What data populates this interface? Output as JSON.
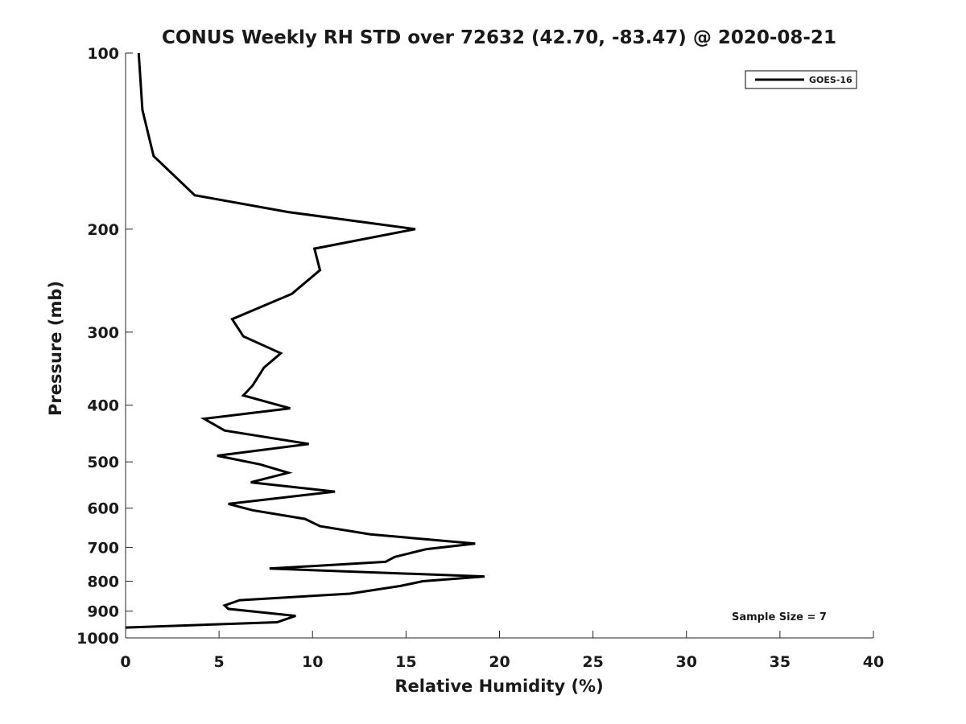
{
  "chart_data": {
    "type": "line",
    "title": "CONUS Weekly RH STD over 72632 (42.70, -83.47) @ 2020-08-21",
    "xlabel": "Relative Humidity (%)",
    "ylabel": "Pressure (mb)",
    "xlim": [
      0,
      40
    ],
    "ylim": [
      100,
      1000
    ],
    "y_scale": "log",
    "y_reversed": true,
    "x_ticks": [
      0,
      5,
      10,
      15,
      20,
      25,
      30,
      35,
      40
    ],
    "y_ticks": [
      100,
      200,
      300,
      400,
      500,
      600,
      700,
      800,
      900,
      1000
    ],
    "grid": false,
    "legend_position": "top-right",
    "annotation": "Sample Size = 7",
    "series": [
      {
        "name": "GOES-16",
        "color": "#000000",
        "points": [
          [
            0.7,
            100
          ],
          [
            0.9,
            125
          ],
          [
            1.5,
            150
          ],
          [
            3.7,
            175
          ],
          [
            8.7,
            187
          ],
          [
            15.5,
            200
          ],
          [
            10.1,
            216
          ],
          [
            10.4,
            235
          ],
          [
            8.9,
            258
          ],
          [
            5.7,
            285
          ],
          [
            6.3,
            305
          ],
          [
            8.3,
            326
          ],
          [
            7.4,
            345
          ],
          [
            6.8,
            370
          ],
          [
            6.3,
            385
          ],
          [
            8.8,
            405
          ],
          [
            4.2,
            422
          ],
          [
            5.3,
            442
          ],
          [
            9.8,
            466
          ],
          [
            4.9,
            488
          ],
          [
            7.2,
            505
          ],
          [
            8.7,
            522
          ],
          [
            6.7,
            542
          ],
          [
            11.2,
            562
          ],
          [
            5.5,
            590
          ],
          [
            6.8,
            605
          ],
          [
            9.6,
            626
          ],
          [
            10.4,
            644
          ],
          [
            13.1,
            665
          ],
          [
            18.7,
            690
          ],
          [
            16.1,
            705
          ],
          [
            14.4,
            727
          ],
          [
            13.9,
            741
          ],
          [
            7.7,
            761
          ],
          [
            19.2,
            785
          ],
          [
            15.9,
            800
          ],
          [
            14.7,
            815
          ],
          [
            12.0,
            840
          ],
          [
            6.1,
            862
          ],
          [
            5.3,
            880
          ],
          [
            5.5,
            892
          ],
          [
            9.1,
            917
          ],
          [
            8.1,
            940
          ],
          [
            0.0,
            960
          ]
        ]
      }
    ]
  }
}
